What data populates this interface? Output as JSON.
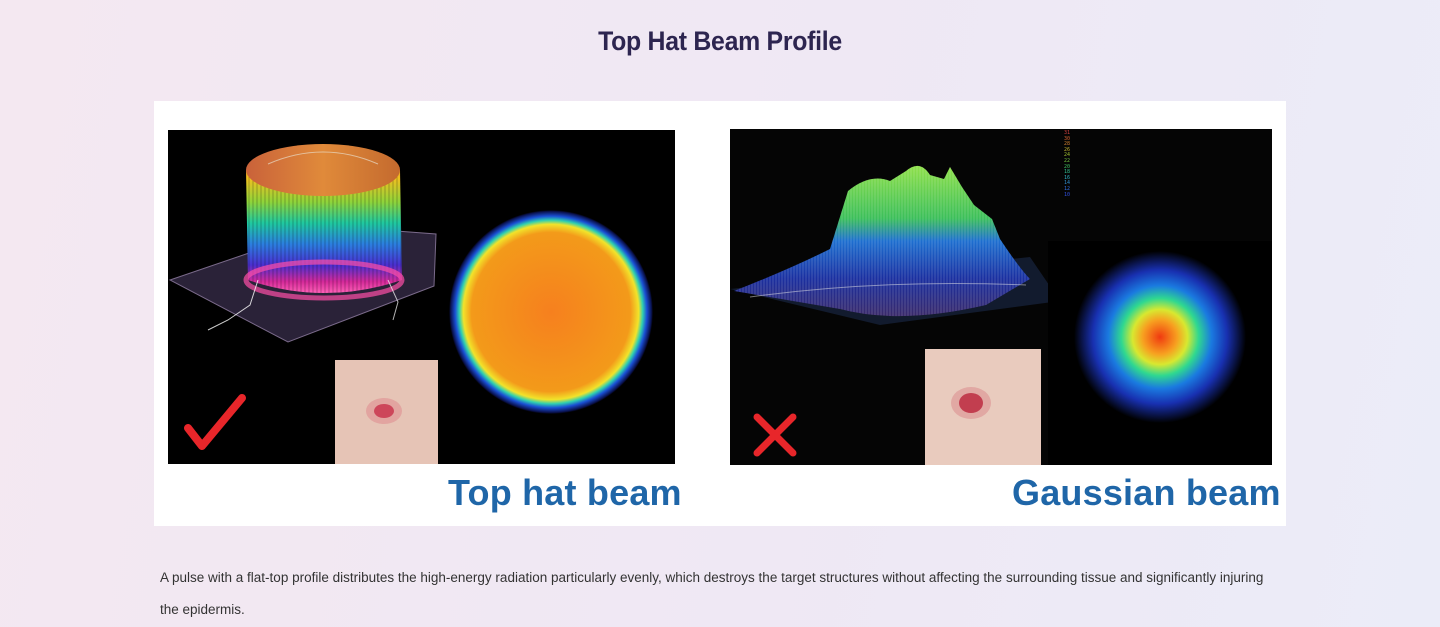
{
  "page": {
    "title": "Top Hat Beam Profile",
    "caption": "A pulse with a flat-top profile distributes the high-energy radiation particularly evenly, which destroys the target structures without affecting the surrounding tissue and significantly injuring the epidermis."
  },
  "figure": {
    "left_panel": {
      "label": "Top hat beam",
      "mark": "check-icon",
      "mark_color": "#e8262a"
    },
    "right_panel": {
      "label": "Gaussian beam",
      "mark": "cross-icon",
      "mark_color": "#e8262a",
      "scale_labels": [
        "31",
        "30",
        "28",
        "26",
        "24",
        "22",
        "20",
        "18",
        "16",
        "14",
        "12",
        "10"
      ]
    },
    "label_color": "#1f66a8"
  }
}
